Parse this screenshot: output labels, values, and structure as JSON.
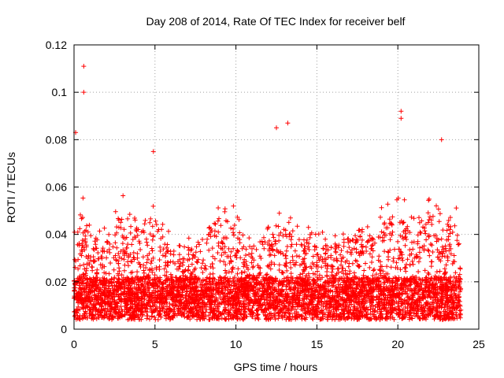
{
  "chart_data": {
    "type": "scatter",
    "title": "Day 208 of 2014, Rate Of TEC Index for receiver belf",
    "xlabel": "GPS time / hours",
    "ylabel": "ROTI / TECUs",
    "xlim": [
      0,
      25
    ],
    "ylim": [
      0,
      0.12
    ],
    "xticks": [
      0,
      5,
      10,
      15,
      20,
      25
    ],
    "xtick_labels": [
      "0",
      "5",
      "10",
      "15",
      "20",
      "25"
    ],
    "yticks": [
      0,
      0.02,
      0.04,
      0.06,
      0.08,
      0.1,
      0.12
    ],
    "ytick_labels": [
      "0",
      "0.02",
      "0.04",
      "0.06",
      "0.08",
      "0.1",
      "0.12"
    ],
    "grid": true,
    "marker": "+",
    "marker_color": "#ff0000",
    "x_range_of_data": [
      0,
      23.9
    ],
    "notable_points": [
      {
        "x": 0.1,
        "y": 0.083
      },
      {
        "x": 0.6,
        "y": 0.111
      },
      {
        "x": 0.6,
        "y": 0.1
      },
      {
        "x": 4.9,
        "y": 0.075
      },
      {
        "x": 12.5,
        "y": 0.085
      },
      {
        "x": 13.2,
        "y": 0.087
      },
      {
        "x": 20.2,
        "y": 0.092
      },
      {
        "x": 20.2,
        "y": 0.089
      },
      {
        "x": 22.7,
        "y": 0.08
      }
    ]
  }
}
